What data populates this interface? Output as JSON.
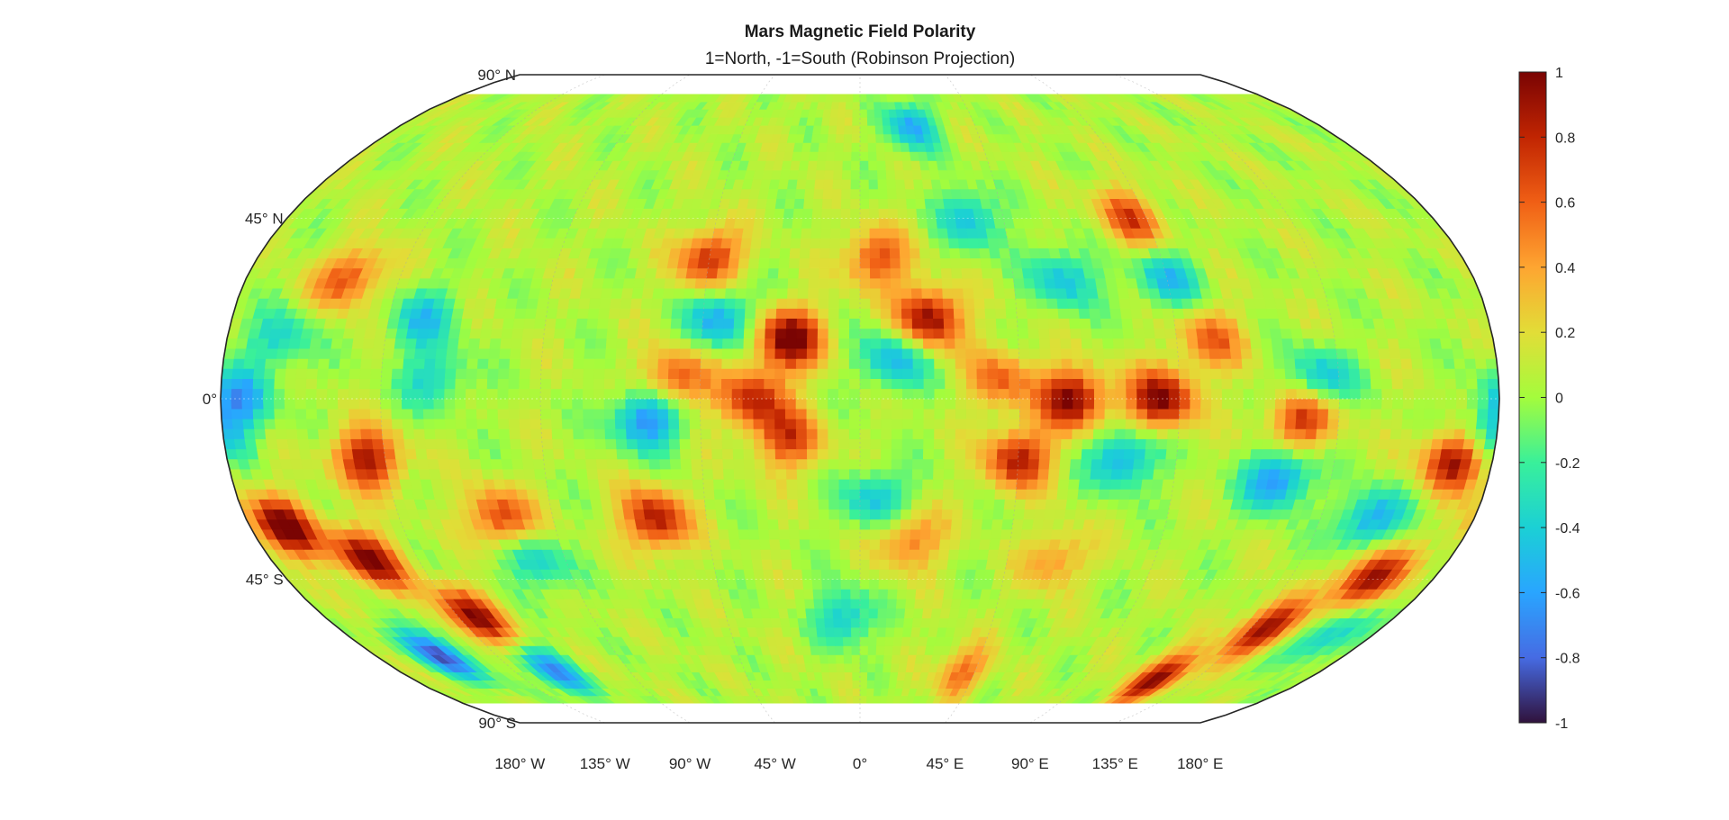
{
  "figure": {
    "title": "Mars Magnetic Field Polarity",
    "subtitle": "1=North, -1=South (Robinson Projection)"
  },
  "map": {
    "projection": "Robinson",
    "lat_labels": [
      {
        "lat": 90,
        "text": "90° N"
      },
      {
        "lat": 45,
        "text": "45° N"
      },
      {
        "lat": 0,
        "text": "0°"
      },
      {
        "lat": -45,
        "text": "45° S"
      },
      {
        "lat": -90,
        "text": "90° S"
      }
    ],
    "lon_labels": [
      {
        "lon": -180,
        "text": "180° W"
      },
      {
        "lon": -135,
        "text": "135° W"
      },
      {
        "lon": -90,
        "text": "90° W"
      },
      {
        "lon": -45,
        "text": "45° W"
      },
      {
        "lon": 0,
        "text": "0°"
      },
      {
        "lon": 45,
        "text": "45° E"
      },
      {
        "lon": 90,
        "text": "90° E"
      },
      {
        "lon": 135,
        "text": "135° E"
      },
      {
        "lon": 180,
        "text": "180° E"
      }
    ],
    "data_lat_range": [
      -80,
      80
    ],
    "background_value": 0.05,
    "features": [
      {
        "lon": -170,
        "lat": -32,
        "value": 0.95
      },
      {
        "lon": -150,
        "lat": -40,
        "value": 0.9
      },
      {
        "lon": -130,
        "lat": -55,
        "value": 0.9
      },
      {
        "lon": -155,
        "lat": -65,
        "value": -0.85
      },
      {
        "lon": -120,
        "lat": -70,
        "value": -0.7
      },
      {
        "lon": -175,
        "lat": 0,
        "value": -0.6
      },
      {
        "lon": -140,
        "lat": -15,
        "value": 0.8
      },
      {
        "lon": -165,
        "lat": 15,
        "value": -0.4
      },
      {
        "lon": -150,
        "lat": 30,
        "value": 0.6
      },
      {
        "lon": -125,
        "lat": 20,
        "value": -0.45
      },
      {
        "lon": -105,
        "lat": -30,
        "value": 0.7
      },
      {
        "lon": -100,
        "lat": -40,
        "value": -0.5
      },
      {
        "lon": -120,
        "lat": 5,
        "value": -0.4
      },
      {
        "lon": -60,
        "lat": -30,
        "value": 0.8
      },
      {
        "lon": -52,
        "lat": 5,
        "value": 0.6
      },
      {
        "lon": -60,
        "lat": -5,
        "value": -0.75
      },
      {
        "lon": -45,
        "lat": 35,
        "value": 0.7
      },
      {
        "lon": -20,
        "lat": 15,
        "value": 0.95
      },
      {
        "lon": -30,
        "lat": 0,
        "value": 0.7
      },
      {
        "lon": -40,
        "lat": 20,
        "value": -0.6
      },
      {
        "lon": 20,
        "lat": 20,
        "value": 0.9
      },
      {
        "lon": 10,
        "lat": 10,
        "value": -0.55
      },
      {
        "lon": 5,
        "lat": 35,
        "value": 0.6
      },
      {
        "lon": 40,
        "lat": 5,
        "value": 0.5
      },
      {
        "lon": 60,
        "lat": 0,
        "value": 0.9
      },
      {
        "lon": 85,
        "lat": 0,
        "value": 0.9
      },
      {
        "lon": 45,
        "lat": -15,
        "value": 0.75
      },
      {
        "lon": 75,
        "lat": -15,
        "value": -0.6
      },
      {
        "lon": 60,
        "lat": 30,
        "value": -0.5
      },
      {
        "lon": 35,
        "lat": 45,
        "value": -0.5
      },
      {
        "lon": 20,
        "lat": 70,
        "value": -0.6
      },
      {
        "lon": 85,
        "lat": 45,
        "value": 0.6
      },
      {
        "lon": 90,
        "lat": 30,
        "value": -0.5
      },
      {
        "lon": 100,
        "lat": 15,
        "value": 0.5
      },
      {
        "lon": 125,
        "lat": -5,
        "value": 0.7
      },
      {
        "lon": 120,
        "lat": -20,
        "value": -0.7
      },
      {
        "lon": 150,
        "lat": -30,
        "value": -0.6
      },
      {
        "lon": 170,
        "lat": -15,
        "value": 0.95
      },
      {
        "lon": 178,
        "lat": -10,
        "value": -0.55
      },
      {
        "lon": 160,
        "lat": -45,
        "value": 0.9
      },
      {
        "lon": 140,
        "lat": -58,
        "value": 0.85
      },
      {
        "lon": 120,
        "lat": -72,
        "value": 0.9
      },
      {
        "lon": 165,
        "lat": -60,
        "value": -0.5
      },
      {
        "lon": 130,
        "lat": 5,
        "value": -0.5
      },
      {
        "lon": -20,
        "lat": -10,
        "value": 0.6
      },
      {
        "lon": 5,
        "lat": -25,
        "value": -0.5
      },
      {
        "lon": 15,
        "lat": -35,
        "value": 0.5
      },
      {
        "lon": 40,
        "lat": -70,
        "value": 0.5
      },
      {
        "lon": -5,
        "lat": -55,
        "value": -0.5
      },
      {
        "lon": 60,
        "lat": -40,
        "value": 0.4
      }
    ]
  },
  "colorbar": {
    "colormap": "turbo",
    "min": -1,
    "max": 1,
    "tick_values": [
      1,
      0.8,
      0.6,
      0.4,
      0.2,
      0,
      -0.2,
      -0.4,
      -0.6,
      -0.8,
      -1
    ],
    "tick_labels": [
      "1",
      "0.8",
      "0.6",
      "0.4",
      "0.2",
      "0",
      "-0.2",
      "-0.4",
      "-0.6",
      "-0.8",
      "-1"
    ]
  }
}
